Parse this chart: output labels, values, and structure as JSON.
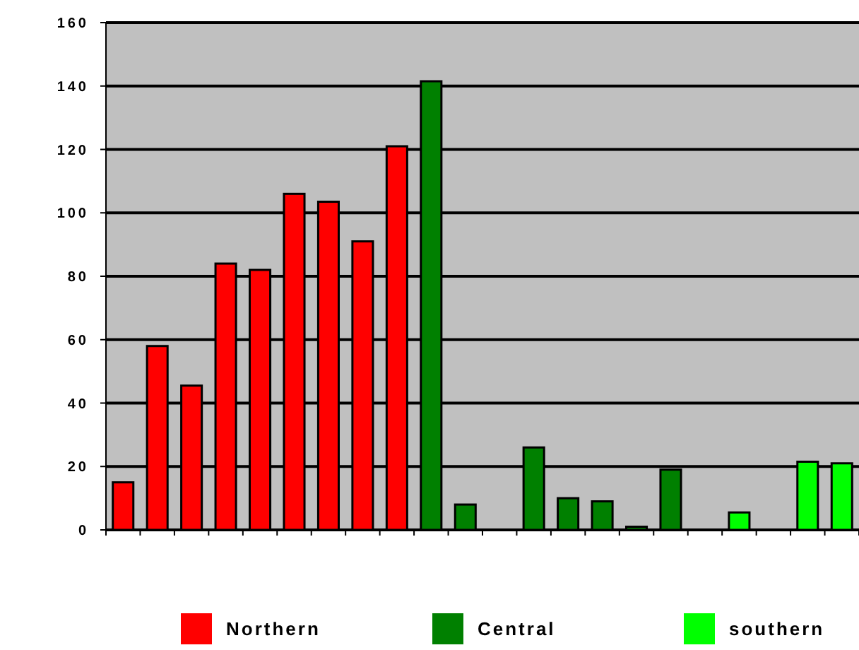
{
  "chart_data": {
    "type": "bar",
    "categories": [
      null,
      null,
      null,
      null,
      null,
      null,
      null,
      null,
      null,
      null,
      null,
      null,
      null,
      null,
      null,
      null,
      null,
      null,
      null,
      null,
      null,
      null
    ],
    "series": [
      {
        "name": "Northern",
        "color": "#ff0000",
        "values": [
          15,
          58,
          45.5,
          84,
          82,
          106,
          103.5,
          91,
          121,
          null,
          null,
          null,
          null,
          null,
          null,
          null,
          null,
          null,
          null,
          null,
          null,
          null
        ]
      },
      {
        "name": "Central",
        "color": "#008000",
        "values": [
          null,
          null,
          null,
          null,
          null,
          null,
          null,
          null,
          null,
          141.5,
          8,
          null,
          26,
          10,
          9,
          1,
          19,
          null,
          null,
          null,
          null,
          null
        ]
      },
      {
        "name": "southern",
        "color": "#00ff00",
        "values": [
          null,
          null,
          null,
          null,
          null,
          null,
          null,
          null,
          null,
          null,
          null,
          null,
          null,
          null,
          null,
          null,
          null,
          null,
          5.5,
          null,
          21.5,
          21
        ]
      }
    ],
    "ylim": [
      0,
      160
    ],
    "yticks": [
      0,
      20,
      40,
      60,
      80,
      100,
      120,
      140,
      160
    ],
    "grid": "y",
    "legend": "bottom"
  }
}
